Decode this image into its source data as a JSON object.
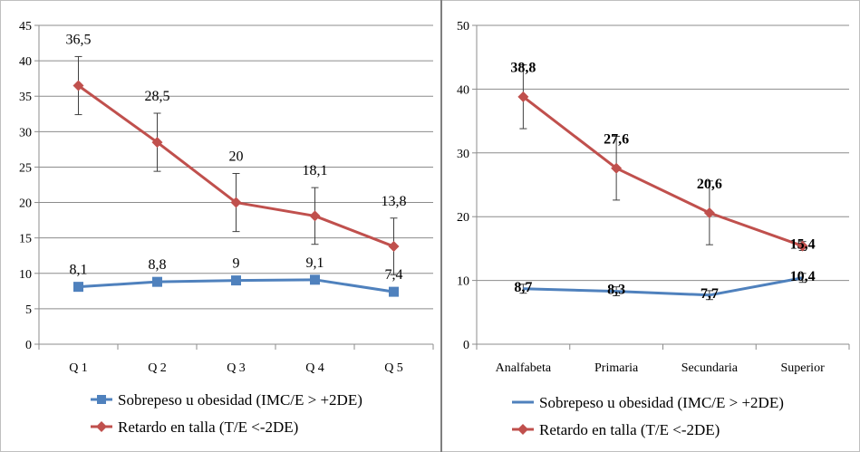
{
  "chart_data": [
    {
      "type": "line",
      "categories": [
        "Q 1",
        "Q 2",
        "Q 3",
        "Q 4",
        "Q 5"
      ],
      "ylim": [
        0,
        45
      ],
      "yticks": [
        0,
        5,
        10,
        15,
        20,
        25,
        30,
        35,
        40,
        45
      ],
      "grid": true,
      "legend_position": "bottom",
      "series": [
        {
          "name": "Sobrepeso u obesidad (IMC/E > +2DE)",
          "color": "#4f81bd",
          "marker": "square",
          "values": [
            8.1,
            8.8,
            9,
            9.1,
            7.4
          ],
          "labels": [
            "8,1",
            "8,8",
            "9",
            "9,1",
            "7,4"
          ]
        },
        {
          "name": "Retardo en talla (T/E <-2DE)",
          "color": "#c0504d",
          "marker": "diamond",
          "values": [
            36.5,
            28.5,
            20,
            18.1,
            13.8
          ],
          "labels": [
            "36,5",
            "28,5",
            "20",
            "18,1",
            "13,8"
          ],
          "error_low": [
            32.4,
            24.4,
            15.9,
            14.1,
            9.8
          ],
          "error_high": [
            40.6,
            32.6,
            24.1,
            22.1,
            17.8
          ]
        }
      ]
    },
    {
      "type": "line",
      "categories": [
        "Analfabeta",
        "Primaria",
        "Secundaria",
        "Superior"
      ],
      "ylim": [
        0,
        50
      ],
      "yticks": [
        0,
        10,
        20,
        30,
        40,
        50
      ],
      "grid": true,
      "legend_position": "bottom",
      "series": [
        {
          "name": "Sobrepeso u obesidad (IMC/E > +2DE)",
          "color": "#4f81bd",
          "marker": "none",
          "values": [
            8.7,
            8.3,
            7.7,
            10.4
          ],
          "labels": [
            "8,7",
            "8,3",
            "7,7",
            "10,4"
          ],
          "error_low": [
            8.0,
            7.6,
            7.0,
            9.7
          ],
          "error_high": [
            9.4,
            9.0,
            8.4,
            11.1
          ]
        },
        {
          "name": "Retardo en talla (T/E <-2DE)",
          "color": "#c0504d",
          "marker": "diamond",
          "values": [
            38.8,
            27.6,
            20.6,
            15.4
          ],
          "labels": [
            "38,8",
            "27,6",
            "20,6",
            "15,4"
          ],
          "error_low": [
            33.8,
            22.6,
            15.6,
            14.7
          ],
          "error_high": [
            43.8,
            32.6,
            25.6,
            16.1
          ]
        }
      ]
    }
  ]
}
